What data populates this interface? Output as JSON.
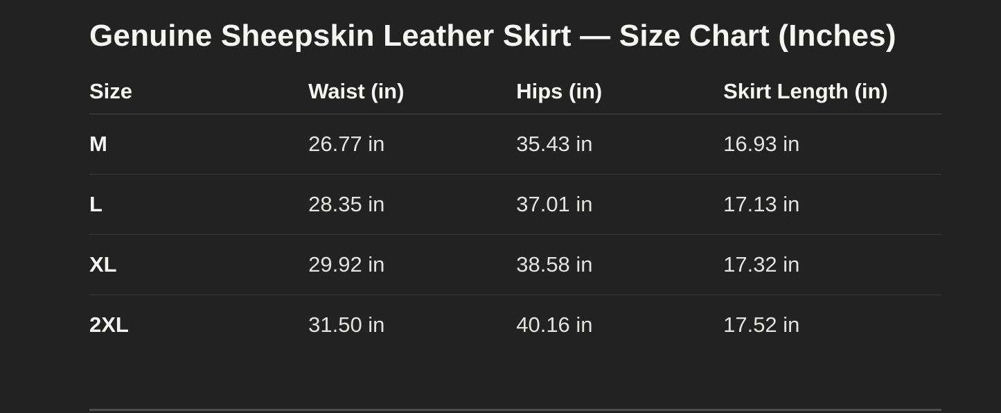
{
  "chart_data": {
    "type": "table",
    "title": "Genuine Sheepskin Leather Skirt — Size Chart (Inches)",
    "columns": [
      "Size",
      "Waist (in)",
      "Hips (in)",
      "Skirt Length (in)"
    ],
    "rows": [
      [
        "M",
        "26.77 in",
        "35.43 in",
        "16.93 in"
      ],
      [
        "L",
        "28.35 in",
        "37.01 in",
        "17.13 in"
      ],
      [
        "XL",
        "29.92 in",
        "38.58 in",
        "17.32 in"
      ],
      [
        "2XL",
        "31.50 in",
        "40.16 in",
        "17.52 in"
      ]
    ],
    "values_numeric": {
      "sizes": [
        "M",
        "L",
        "XL",
        "2XL"
      ],
      "waist_in": [
        26.77,
        28.35,
        29.92,
        31.5
      ],
      "hips_in": [
        35.43,
        37.01,
        38.58,
        40.16
      ],
      "skirt_length_in": [
        16.93,
        17.13,
        17.32,
        17.52
      ]
    },
    "unit": "in"
  },
  "colors": {
    "background": "#222222",
    "title_text": "#f5f5f3",
    "header_text": "#f5f5f3",
    "value_text": "#e2e2e0",
    "header_border": "#484848",
    "row_border": "#383838",
    "bottom_divider": "#4e4e4e"
  }
}
